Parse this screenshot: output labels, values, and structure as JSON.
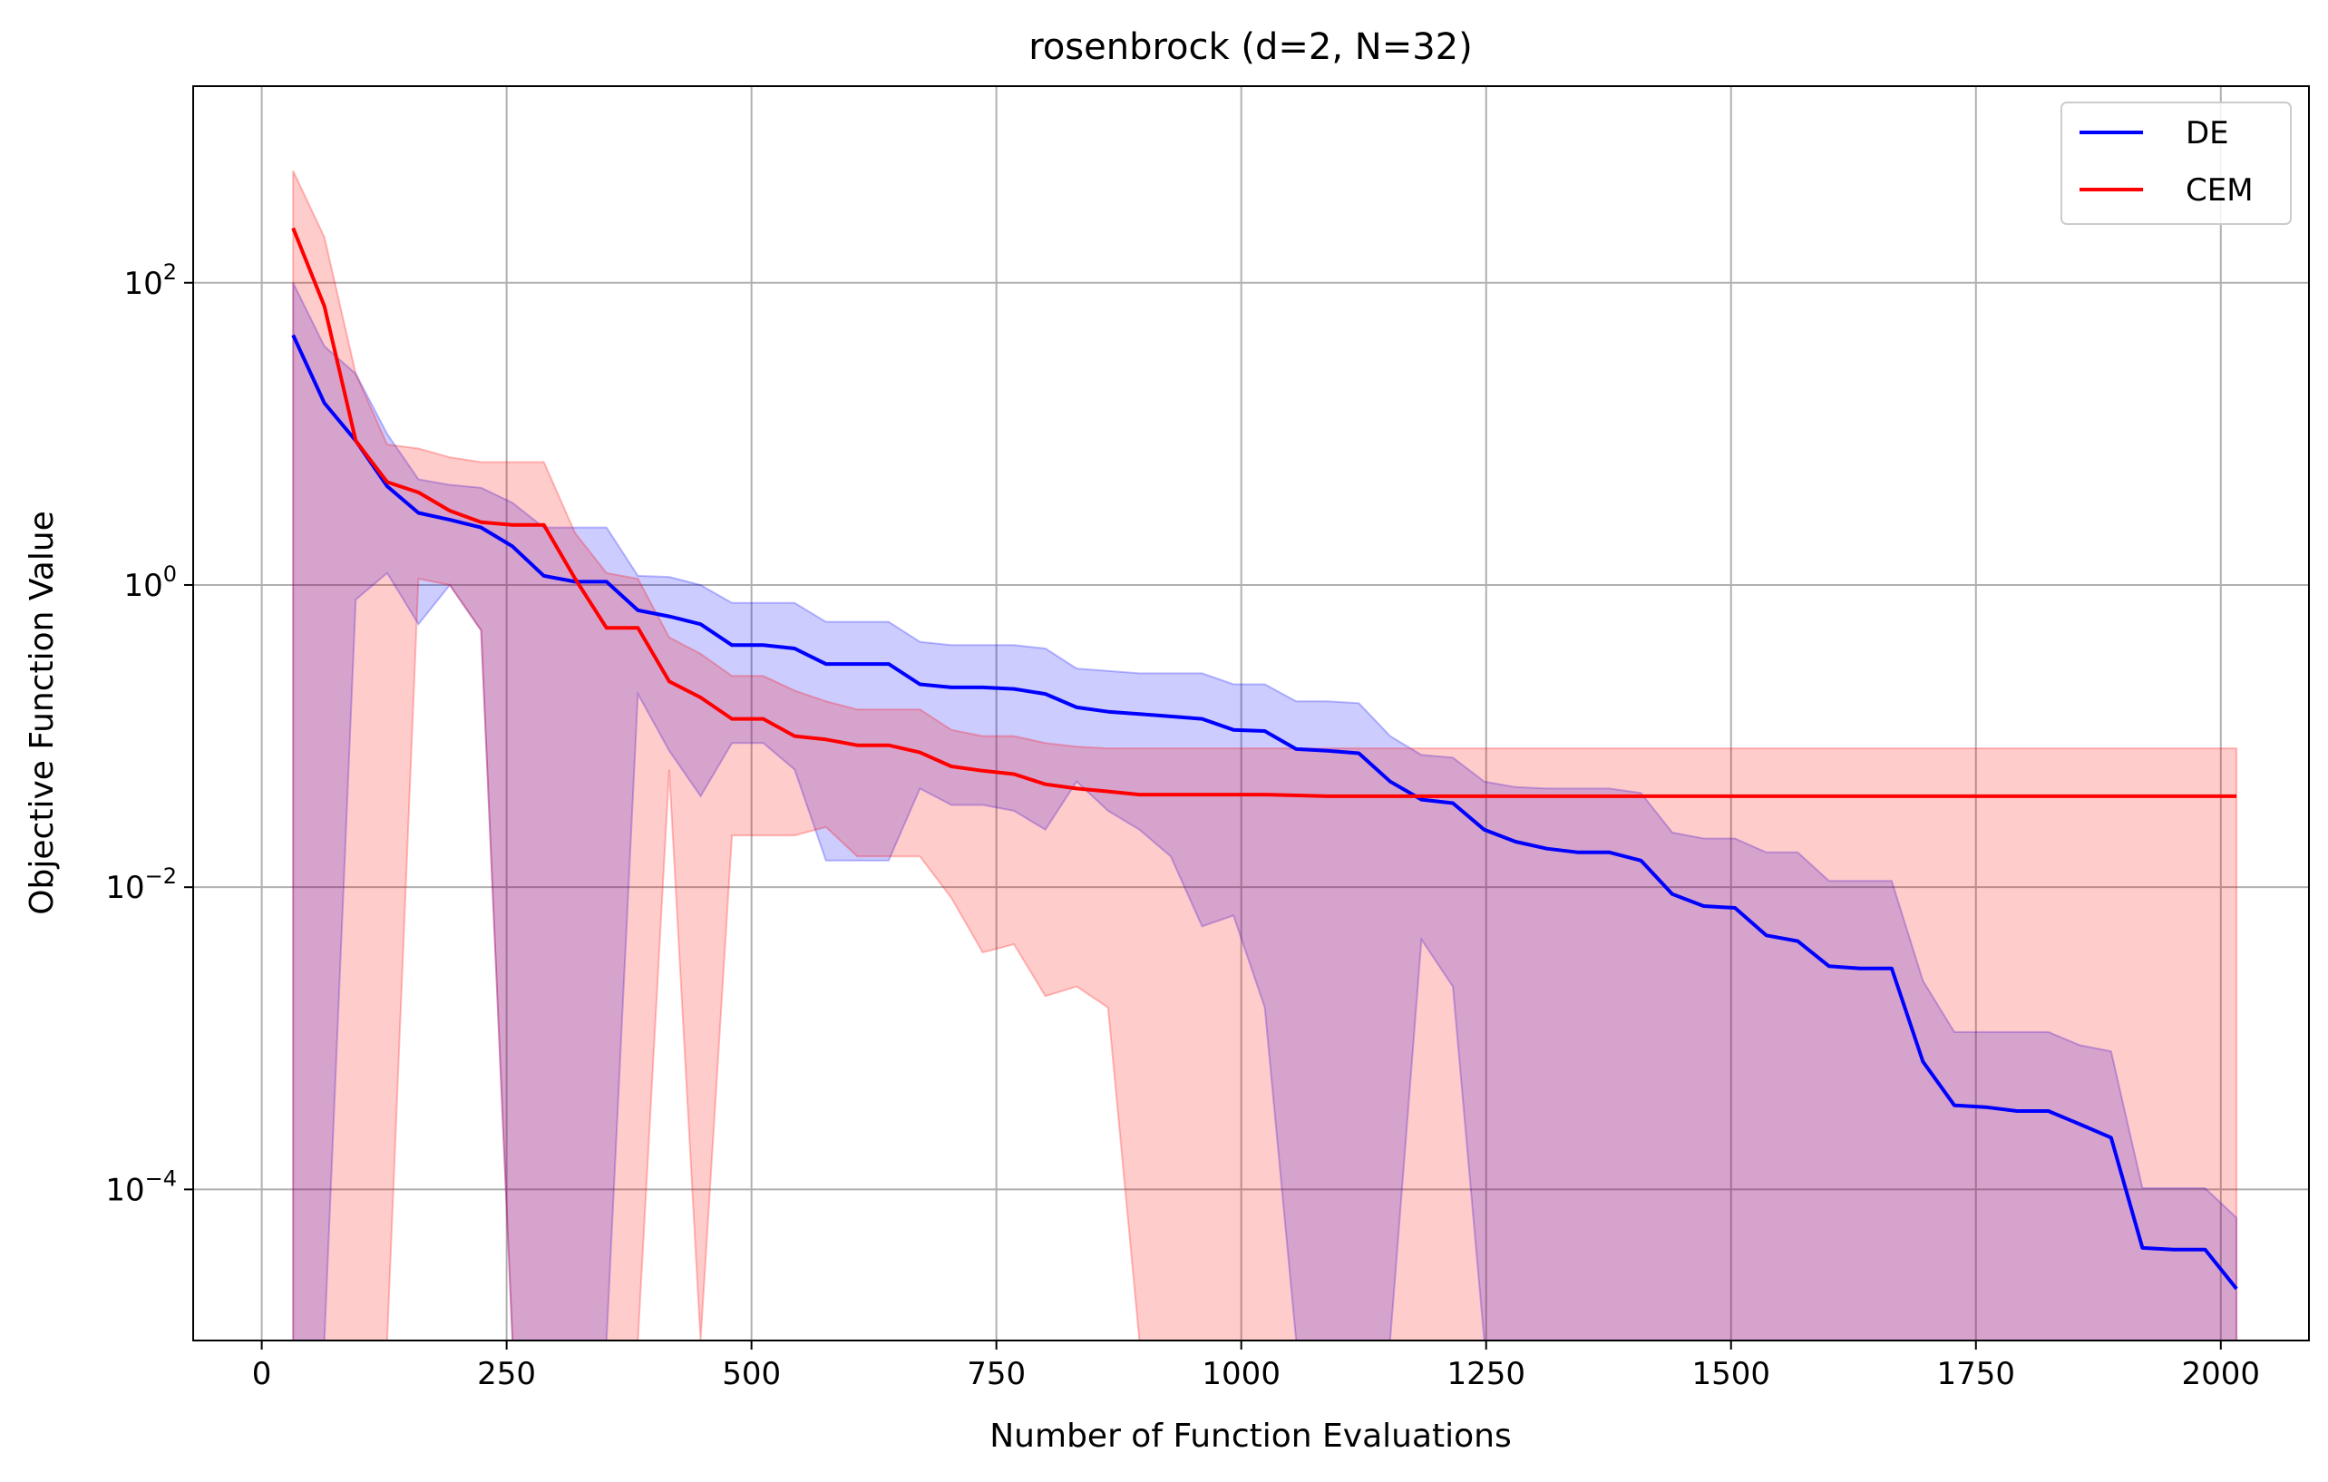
{
  "chart_data": {
    "type": "line",
    "title": "rosenbrock (d=2, N=32)",
    "xlabel": "Number of Function Evaluations",
    "ylabel": "Objective Function Value",
    "xlim": [
      -70,
      2090
    ],
    "ylim": [
      1e-05,
      2000
    ],
    "yscale": "log",
    "x_ticks": [
      0,
      250,
      500,
      750,
      1000,
      1250,
      1500,
      1750,
      2000
    ],
    "x_tick_labels": [
      "0",
      "250",
      "500",
      "750",
      "1000",
      "1250",
      "1500",
      "1750",
      "2000"
    ],
    "y_ticks": [
      0.0001,
      0.01,
      1,
      100
    ],
    "y_tick_labels": [
      {
        "base": "10",
        "exp": "−4"
      },
      {
        "base": "10",
        "exp": "−2"
      },
      {
        "base": "10",
        "exp": "0"
      },
      {
        "base": "10",
        "exp": "2"
      }
    ],
    "grid": true,
    "legend_position": "top-right",
    "series": [
      {
        "name": "DE",
        "color": "#0000ff",
        "band_color": "#0000ff",
        "points": [
          [
            32,
            45,
            100,
            1e-06
          ],
          [
            64,
            16,
            38,
            1e-06
          ],
          [
            96,
            9,
            25,
            0.8
          ],
          [
            128,
            4.5,
            10,
            1.2
          ],
          [
            160,
            3,
            5,
            0.55
          ],
          [
            192,
            2.7,
            4.6,
            1.0
          ],
          [
            224,
            2.4,
            4.4,
            0.5
          ],
          [
            256,
            1.8,
            3.5,
            1e-06
          ],
          [
            288,
            1.15,
            2.4,
            1e-06
          ],
          [
            320,
            1.05,
            2.4,
            1e-06
          ],
          [
            352,
            1.05,
            2.4,
            1e-06
          ],
          [
            384,
            0.68,
            1.15,
            0.19
          ],
          [
            416,
            0.62,
            1.13,
            0.08
          ],
          [
            448,
            0.55,
            1.0,
            0.04
          ],
          [
            480,
            0.4,
            0.76,
            0.09
          ],
          [
            512,
            0.4,
            0.76,
            0.09
          ],
          [
            544,
            0.38,
            0.76,
            0.06
          ],
          [
            576,
            0.3,
            0.57,
            0.015
          ],
          [
            608,
            0.3,
            0.57,
            0.015
          ],
          [
            640,
            0.3,
            0.57,
            0.015
          ],
          [
            672,
            0.22,
            0.42,
            0.045
          ],
          [
            704,
            0.21,
            0.4,
            0.035
          ],
          [
            736,
            0.21,
            0.4,
            0.035
          ],
          [
            768,
            0.205,
            0.4,
            0.032
          ],
          [
            800,
            0.19,
            0.38,
            0.024
          ],
          [
            832,
            0.155,
            0.28,
            0.05
          ],
          [
            864,
            0.145,
            0.27,
            0.032
          ],
          [
            896,
            0.14,
            0.26,
            0.024
          ],
          [
            928,
            0.135,
            0.26,
            0.016
          ],
          [
            960,
            0.13,
            0.26,
            0.0055
          ],
          [
            992,
            0.11,
            0.22,
            0.0065
          ],
          [
            1024,
            0.108,
            0.22,
            0.0016
          ],
          [
            1056,
            0.082,
            0.17,
            1e-06
          ],
          [
            1088,
            0.08,
            0.17,
            1e-06
          ],
          [
            1120,
            0.077,
            0.165,
            1e-06
          ],
          [
            1152,
            0.05,
            0.1,
            1e-06
          ],
          [
            1184,
            0.038,
            0.075,
            0.0045
          ],
          [
            1216,
            0.036,
            0.072,
            0.0022
          ],
          [
            1248,
            0.024,
            0.05,
            1e-06
          ],
          [
            1280,
            0.02,
            0.046,
            1e-06
          ],
          [
            1312,
            0.018,
            0.045,
            1e-06
          ],
          [
            1344,
            0.017,
            0.045,
            1e-06
          ],
          [
            1376,
            0.017,
            0.045,
            1e-06
          ],
          [
            1408,
            0.015,
            0.042,
            1e-06
          ],
          [
            1440,
            0.009,
            0.023,
            1e-06
          ],
          [
            1472,
            0.0075,
            0.021,
            1e-06
          ],
          [
            1504,
            0.0073,
            0.021,
            1e-06
          ],
          [
            1536,
            0.0048,
            0.017,
            1e-06
          ],
          [
            1568,
            0.0044,
            0.017,
            1e-06
          ],
          [
            1600,
            0.003,
            0.011,
            1e-06
          ],
          [
            1632,
            0.0029,
            0.011,
            1e-06
          ],
          [
            1664,
            0.0029,
            0.011,
            1e-06
          ],
          [
            1696,
            0.0007,
            0.0024,
            1e-06
          ],
          [
            1728,
            0.00036,
            0.0011,
            1e-06
          ],
          [
            1760,
            0.00035,
            0.0011,
            1e-06
          ],
          [
            1792,
            0.00033,
            0.0011,
            1e-06
          ],
          [
            1824,
            0.00033,
            0.0011,
            1e-06
          ],
          [
            1856,
            0.00027,
            0.0009,
            1e-06
          ],
          [
            1888,
            0.00022,
            0.00082,
            1e-06
          ],
          [
            1920,
            4.1e-05,
            0.000102,
            1e-06
          ],
          [
            1952,
            4e-05,
            0.000102,
            1e-06
          ],
          [
            1984,
            4e-05,
            0.000102,
            1e-06
          ],
          [
            2016,
            2.2e-05,
            6.5e-05,
            1e-06
          ]
        ]
      },
      {
        "name": "CEM",
        "color": "#ff0000",
        "band_color": "#ff0000",
        "points": [
          [
            32,
            230,
            550,
            1e-06
          ],
          [
            64,
            70,
            200,
            1e-06
          ],
          [
            96,
            9,
            25,
            1e-06
          ],
          [
            128,
            4.8,
            8.5,
            1e-06
          ],
          [
            160,
            4.1,
            8.0,
            1.1
          ],
          [
            192,
            3.1,
            7.0,
            1.0
          ],
          [
            224,
            2.6,
            6.5,
            0.5
          ],
          [
            256,
            2.5,
            6.5,
            1e-06
          ],
          [
            288,
            2.5,
            6.5,
            1e-06
          ],
          [
            320,
            1.1,
            2.2,
            1e-06
          ],
          [
            352,
            0.52,
            1.2,
            1e-06
          ],
          [
            384,
            0.52,
            1.1,
            1e-06
          ],
          [
            416,
            0.23,
            0.45,
            0.06
          ],
          [
            448,
            0.18,
            0.35,
            1e-06
          ],
          [
            480,
            0.13,
            0.25,
            0.022
          ],
          [
            512,
            0.13,
            0.25,
            0.022
          ],
          [
            544,
            0.1,
            0.2,
            0.022
          ],
          [
            576,
            0.095,
            0.17,
            0.025
          ],
          [
            608,
            0.087,
            0.15,
            0.016
          ],
          [
            640,
            0.087,
            0.15,
            0.016
          ],
          [
            672,
            0.078,
            0.15,
            0.016
          ],
          [
            704,
            0.063,
            0.11,
            0.0085
          ],
          [
            736,
            0.059,
            0.1,
            0.0037
          ],
          [
            768,
            0.056,
            0.1,
            0.0042
          ],
          [
            800,
            0.048,
            0.09,
            0.0019
          ],
          [
            832,
            0.045,
            0.085,
            0.0022
          ],
          [
            864,
            0.043,
            0.083,
            0.0016
          ],
          [
            896,
            0.041,
            0.083,
            1e-06
          ],
          [
            960,
            0.041,
            0.083,
            1e-06
          ],
          [
            1024,
            0.041,
            0.083,
            1e-06
          ],
          [
            1088,
            0.04,
            0.083,
            1e-06
          ],
          [
            1152,
            0.04,
            0.083,
            1e-06
          ],
          [
            1216,
            0.04,
            0.083,
            1e-06
          ],
          [
            1280,
            0.04,
            0.083,
            1e-06
          ],
          [
            1408,
            0.04,
            0.083,
            1e-06
          ],
          [
            1600,
            0.04,
            0.083,
            1e-06
          ],
          [
            1800,
            0.04,
            0.083,
            1e-06
          ],
          [
            2016,
            0.04,
            0.083,
            1e-06
          ]
        ]
      }
    ]
  }
}
